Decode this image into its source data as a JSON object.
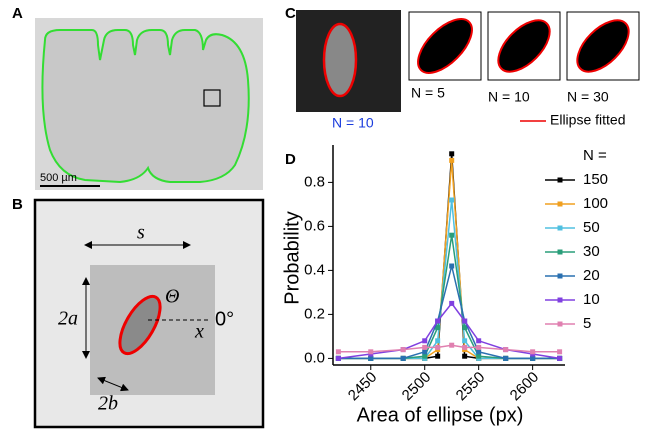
{
  "panels": {
    "A": {
      "label": "A",
      "scale_bar": "500 µm"
    },
    "B": {
      "label": "B",
      "s": "s",
      "major": "2a",
      "angle": "Θ",
      "axis": "x",
      "zero": "0°",
      "minor": "2b"
    },
    "C": {
      "label": "C",
      "sample_label": "N = 10",
      "fits": [
        "N = 5",
        "N = 10",
        "N = 30"
      ],
      "legend": "Ellipse fitted"
    }
  },
  "chart_data": {
    "type": "line",
    "panel_label": "D",
    "x_label": "Area of ellipse (px)",
    "y_label": "Probability",
    "legend_title": "N =",
    "legend": "top-right",
    "x": [
      2420,
      2450,
      2480,
      2500,
      2512,
      2525,
      2537,
      2550,
      2575,
      2600,
      2625
    ],
    "xlim": [
      2415,
      2630
    ],
    "xticks": [
      2450,
      2500,
      2550,
      2600
    ],
    "ylim": [
      -0.03,
      0.97
    ],
    "yticks": [
      {
        "value": 0,
        "label": "0.0"
      },
      0.2,
      0.4,
      0.6,
      0.8
    ],
    "series": [
      {
        "name": "150",
        "color": "#000000",
        "values": [
          0,
          0,
          0,
          0,
          0.01,
          0.93,
          0.01,
          0,
          0,
          0,
          0
        ]
      },
      {
        "name": "100",
        "color": "#f0a020",
        "values": [
          0,
          0,
          0,
          0,
          0.04,
          0.9,
          0.04,
          0,
          0,
          0,
          0
        ]
      },
      {
        "name": "50",
        "color": "#50c0e0",
        "values": [
          0,
          0,
          0,
          0,
          0.08,
          0.72,
          0.08,
          0,
          0,
          0,
          0
        ]
      },
      {
        "name": "30",
        "color": "#2a9e7a",
        "values": [
          0,
          0,
          0,
          0.01,
          0.14,
          0.56,
          0.14,
          0.01,
          0,
          0,
          0
        ]
      },
      {
        "name": "20",
        "color": "#2a70b0",
        "values": [
          0,
          0,
          0,
          0.03,
          0.17,
          0.42,
          0.17,
          0.03,
          0,
          0,
          0
        ]
      },
      {
        "name": "10",
        "color": "#8040e0",
        "values": [
          0,
          0.02,
          0.04,
          0.08,
          0.17,
          0.25,
          0.17,
          0.08,
          0.04,
          0.02,
          0
        ]
      },
      {
        "name": "5",
        "color": "#e080b0",
        "values": [
          0.03,
          0.03,
          0.04,
          0.05,
          0.05,
          0.06,
          0.05,
          0.05,
          0.04,
          0.03,
          0.03
        ]
      }
    ]
  }
}
